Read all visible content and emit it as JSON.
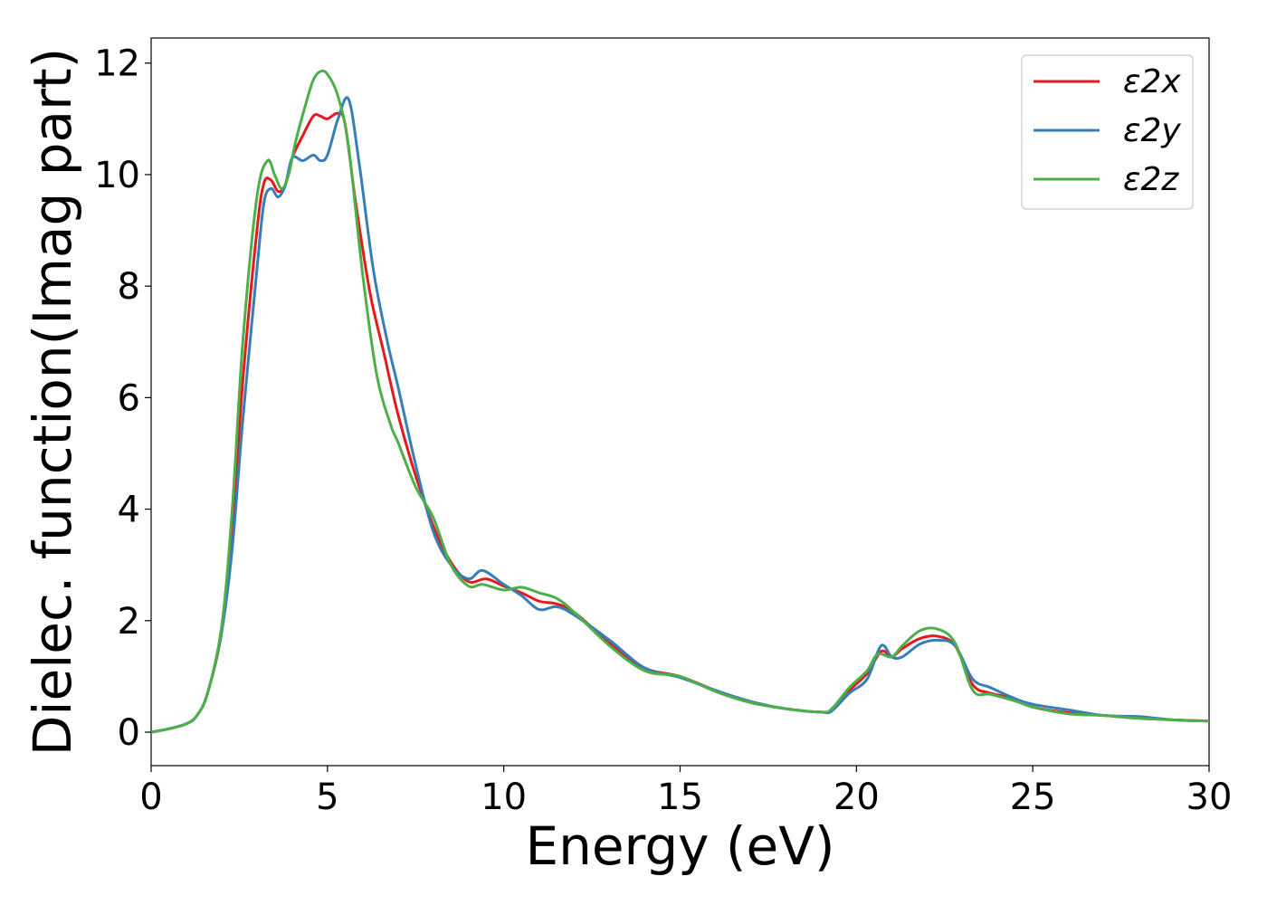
{
  "chart_data": {
    "type": "line",
    "title": "",
    "xlabel": "Energy (eV)",
    "ylabel": "Dielec. function(Imag part)",
    "xlim": [
      0,
      30
    ],
    "ylim": [
      -0.6,
      12.45
    ],
    "xticks": [
      0,
      5,
      10,
      15,
      20,
      25,
      30
    ],
    "yticks": [
      0,
      2,
      4,
      6,
      8,
      10,
      12
    ],
    "grid": false,
    "legend_position": "upper-right",
    "series": [
      {
        "name": "ε2x",
        "color": "#e41a1c",
        "x": [
          0,
          0.5,
          1,
          1.3,
          1.6,
          2.0,
          2.3,
          2.6,
          3.0,
          3.2,
          3.4,
          3.6,
          3.8,
          4.0,
          4.3,
          4.6,
          4.8,
          5.0,
          5.3,
          5.5,
          5.8,
          6.2,
          6.6,
          7.0,
          7.5,
          8.0,
          8.5,
          9.0,
          9.5,
          10.0,
          10.5,
          11.0,
          11.5,
          12.0,
          13.0,
          14.0,
          15.0,
          16.0,
          17.0,
          18.0,
          19.0,
          19.3,
          19.8,
          20.3,
          20.7,
          21.0,
          21.3,
          21.8,
          22.3,
          22.8,
          23.3,
          23.8,
          24.5,
          25.0,
          26.0,
          27.0,
          28.0,
          29.0,
          30.0
        ],
        "y": [
          0,
          0.06,
          0.15,
          0.3,
          0.7,
          1.8,
          3.6,
          6.3,
          9.0,
          9.85,
          9.9,
          9.7,
          9.8,
          10.3,
          10.7,
          11.05,
          11.05,
          11.0,
          11.1,
          10.9,
          9.5,
          7.9,
          6.8,
          5.7,
          4.6,
          3.7,
          3.05,
          2.7,
          2.75,
          2.62,
          2.5,
          2.35,
          2.3,
          2.15,
          1.6,
          1.15,
          1.0,
          0.75,
          0.55,
          0.42,
          0.36,
          0.4,
          0.75,
          1.05,
          1.45,
          1.35,
          1.5,
          1.68,
          1.72,
          1.55,
          0.85,
          0.7,
          0.6,
          0.45,
          0.35,
          0.3,
          0.25,
          0.22,
          0.2
        ]
      },
      {
        "name": "ε2y",
        "color": "#377eb8",
        "x": [
          0,
          0.5,
          1,
          1.3,
          1.6,
          2.0,
          2.3,
          2.6,
          3.0,
          3.2,
          3.4,
          3.6,
          3.8,
          4.0,
          4.3,
          4.6,
          4.8,
          5.0,
          5.3,
          5.6,
          5.9,
          6.3,
          6.7,
          7.0,
          7.5,
          8.0,
          8.5,
          9.0,
          9.4,
          10.0,
          10.5,
          11.0,
          11.5,
          12.0,
          13.0,
          14.0,
          15.0,
          16.0,
          17.0,
          18.0,
          19.0,
          19.3,
          19.8,
          20.3,
          20.7,
          21.0,
          21.3,
          21.8,
          22.3,
          22.8,
          23.3,
          23.8,
          24.5,
          25.0,
          26.0,
          27.0,
          28.0,
          29.0,
          30.0
        ],
        "y": [
          0,
          0.06,
          0.15,
          0.3,
          0.7,
          1.8,
          3.3,
          5.6,
          8.3,
          9.5,
          9.75,
          9.6,
          9.8,
          10.3,
          10.25,
          10.35,
          10.25,
          10.35,
          11.0,
          11.35,
          10.2,
          8.3,
          7.0,
          6.2,
          4.8,
          3.6,
          3.0,
          2.75,
          2.9,
          2.65,
          2.45,
          2.2,
          2.25,
          2.1,
          1.65,
          1.15,
          0.98,
          0.75,
          0.55,
          0.42,
          0.36,
          0.38,
          0.7,
          0.95,
          1.55,
          1.35,
          1.35,
          1.58,
          1.65,
          1.55,
          0.95,
          0.8,
          0.6,
          0.5,
          0.4,
          0.3,
          0.28,
          0.22,
          0.2
        ]
      },
      {
        "name": "ε2z",
        "color": "#4daf4a",
        "x": [
          0,
          0.5,
          1,
          1.3,
          1.6,
          2.0,
          2.3,
          2.6,
          3.0,
          3.3,
          3.5,
          3.7,
          3.9,
          4.1,
          4.4,
          4.6,
          4.8,
          5.0,
          5.3,
          5.6,
          6.0,
          6.4,
          6.8,
          7.0,
          7.5,
          8.0,
          8.5,
          9.0,
          9.4,
          10.0,
          10.5,
          11.0,
          11.5,
          12.0,
          13.0,
          14.0,
          15.0,
          16.0,
          17.0,
          18.0,
          19.0,
          19.3,
          19.8,
          20.3,
          20.6,
          21.0,
          21.3,
          21.8,
          22.3,
          22.8,
          23.3,
          23.8,
          24.5,
          25.0,
          26.0,
          27.0,
          28.0,
          29.0,
          30.0
        ],
        "y": [
          0,
          0.06,
          0.15,
          0.3,
          0.7,
          1.9,
          4.0,
          7.0,
          9.6,
          10.25,
          10.0,
          9.75,
          10.0,
          10.6,
          11.3,
          11.7,
          11.85,
          11.8,
          11.4,
          10.5,
          8.2,
          6.4,
          5.5,
          5.2,
          4.4,
          3.85,
          3.0,
          2.62,
          2.65,
          2.55,
          2.6,
          2.5,
          2.4,
          2.15,
          1.55,
          1.1,
          1.0,
          0.73,
          0.53,
          0.42,
          0.36,
          0.42,
          0.8,
          1.1,
          1.4,
          1.35,
          1.55,
          1.82,
          1.85,
          1.6,
          0.75,
          0.68,
          0.56,
          0.45,
          0.33,
          0.3,
          0.25,
          0.22,
          0.2
        ]
      }
    ]
  }
}
